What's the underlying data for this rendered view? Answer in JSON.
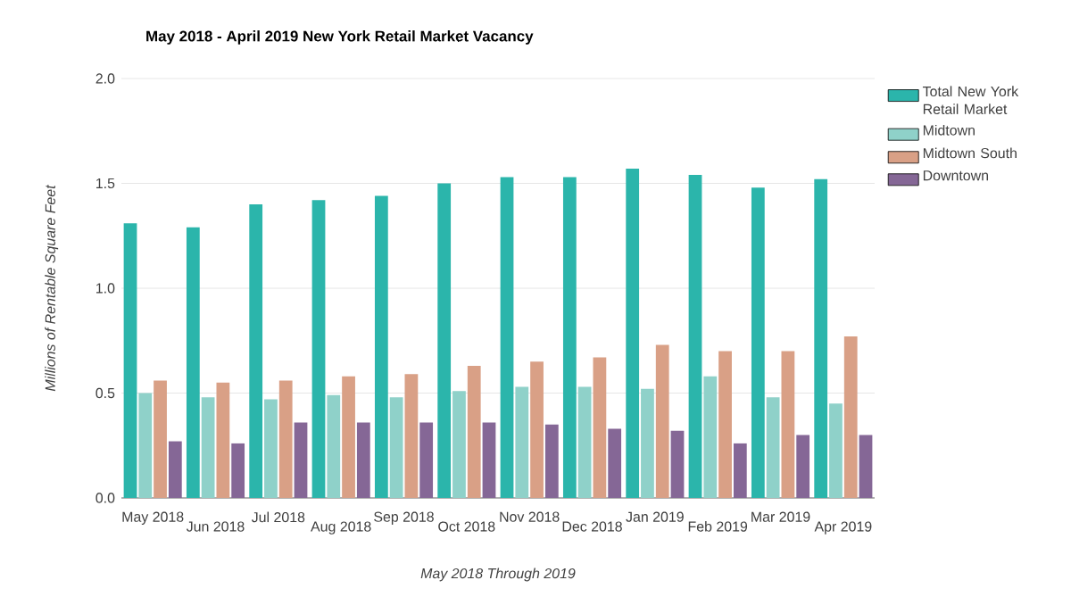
{
  "chart_data": {
    "type": "bar",
    "title": "May 2018 - April 2019 New York Retail Market Vacancy",
    "xlabel": "May 2018 Through 2019",
    "ylabel": "Millions of Rentable Square Feet",
    "categories": [
      "May 2018",
      "Jun 2018",
      "Jul 2018",
      "Aug 2018",
      "Sep 2018",
      "Oct 2018",
      "Nov 2018",
      "Dec 2018",
      "Jan 2019",
      "Feb 2019",
      "Mar 2019",
      "Apr 2019"
    ],
    "series": [
      {
        "name": "Total New York Retail Market",
        "color": "#2bb5ab",
        "values": [
          1.31,
          1.29,
          1.4,
          1.42,
          1.44,
          1.5,
          1.53,
          1.53,
          1.57,
          1.54,
          1.48,
          1.52
        ]
      },
      {
        "name": "Midtown",
        "color": "#8fd1c9",
        "values": [
          0.5,
          0.48,
          0.47,
          0.49,
          0.48,
          0.51,
          0.53,
          0.53,
          0.52,
          0.58,
          0.48,
          0.45
        ]
      },
      {
        "name": "Midtown South",
        "color": "#d9a086",
        "values": [
          0.56,
          0.55,
          0.56,
          0.58,
          0.59,
          0.63,
          0.65,
          0.67,
          0.73,
          0.7,
          0.7,
          0.77
        ]
      },
      {
        "name": "Downtown",
        "color": "#856796",
        "values": [
          0.27,
          0.26,
          0.36,
          0.36,
          0.36,
          0.36,
          0.35,
          0.33,
          0.32,
          0.26,
          0.3,
          0.3
        ]
      }
    ],
    "ylim": [
      0,
      2
    ],
    "yticks": [
      {
        "value": 0,
        "label": "0.0"
      },
      {
        "value": 0.5,
        "label": "0.5"
      },
      {
        "value": 1,
        "label": "1.0"
      },
      {
        "value": 1.5,
        "label": "1.5"
      },
      {
        "value": 2,
        "label": "2.0"
      }
    ],
    "grid": "y",
    "legend": "right"
  }
}
